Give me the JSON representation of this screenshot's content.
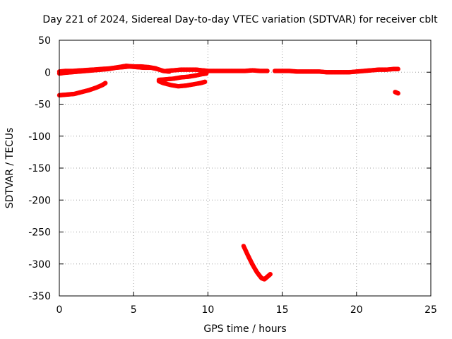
{
  "chart_data": {
    "type": "scatter",
    "title": "Day 221 of 2024, Sidereal Day-to-day VTEC variation (SDTVAR) for receiver cblt",
    "xlabel": "GPS time / hours",
    "ylabel": "SDTVAR / TECUs",
    "xlim": [
      0,
      25
    ],
    "ylim": [
      -350,
      50
    ],
    "xticks": [
      0,
      5,
      10,
      15,
      20,
      25
    ],
    "yticks": [
      50,
      0,
      -50,
      -100,
      -150,
      -200,
      -250,
      -300,
      -350
    ],
    "grid": true,
    "legend": "none",
    "marker_color": "#ff0000",
    "series": [
      {
        "segments": [
          [
            [
              0.0,
              -2
            ],
            [
              0.3,
              -1
            ],
            [
              0.8,
              0
            ],
            [
              1.3,
              1
            ],
            [
              1.8,
              2
            ],
            [
              2.3,
              3
            ],
            [
              2.8,
              4
            ],
            [
              3.3,
              5
            ],
            [
              3.8,
              7
            ],
            [
              4.3,
              8
            ],
            [
              4.7,
              9
            ],
            [
              5.2,
              8
            ],
            [
              5.7,
              7
            ],
            [
              6.2,
              7
            ],
            [
              6.6,
              5
            ],
            [
              7.0,
              2
            ],
            [
              7.4,
              1
            ]
          ],
          [
            [
              0.0,
              1
            ],
            [
              0.4,
              2
            ],
            [
              0.9,
              2
            ],
            [
              1.5,
              3
            ],
            [
              2.2,
              4
            ],
            [
              2.8,
              5
            ],
            [
              3.4,
              6
            ],
            [
              4.0,
              8
            ],
            [
              4.5,
              10
            ],
            [
              5.0,
              9
            ],
            [
              5.5,
              9
            ],
            [
              6.0,
              8
            ],
            [
              6.5,
              6
            ]
          ],
          [
            [
              0.0,
              -36
            ],
            [
              0.5,
              -35
            ],
            [
              1.0,
              -34
            ],
            [
              1.5,
              -31
            ],
            [
              2.0,
              -28
            ],
            [
              2.5,
              -24
            ],
            [
              2.9,
              -20
            ],
            [
              3.1,
              -17
            ]
          ],
          [
            [
              6.7,
              -14
            ],
            [
              7.0,
              -17
            ],
            [
              7.5,
              -20
            ],
            [
              8.0,
              -22
            ],
            [
              8.5,
              -21
            ],
            [
              9.0,
              -19
            ],
            [
              9.5,
              -17
            ],
            [
              9.8,
              -15
            ]
          ],
          [
            [
              6.7,
              -12
            ],
            [
              7.2,
              -11
            ],
            [
              7.7,
              -10
            ],
            [
              8.2,
              -8
            ],
            [
              8.7,
              -7
            ],
            [
              9.2,
              -5
            ],
            [
              9.6,
              -3
            ],
            [
              9.9,
              -2
            ]
          ],
          [
            [
              7.2,
              2
            ],
            [
              7.7,
              3
            ],
            [
              8.2,
              4
            ],
            [
              8.7,
              4
            ],
            [
              9.2,
              4
            ],
            [
              9.6,
              3
            ],
            [
              10.0,
              2
            ],
            [
              10.5,
              2
            ],
            [
              11.0,
              2
            ],
            [
              11.5,
              2
            ],
            [
              12.0,
              2
            ],
            [
              12.5,
              2
            ],
            [
              13.0,
              3
            ],
            [
              13.5,
              2
            ],
            [
              14.0,
              2
            ]
          ],
          [
            [
              14.5,
              2
            ],
            [
              15.0,
              2
            ],
            [
              15.5,
              2
            ],
            [
              16.0,
              1
            ],
            [
              16.5,
              1
            ],
            [
              17.0,
              1
            ],
            [
              17.5,
              1
            ],
            [
              18.0,
              0
            ],
            [
              18.5,
              0
            ],
            [
              19.0,
              0
            ],
            [
              19.5,
              0
            ],
            [
              20.0,
              1
            ],
            [
              20.5,
              2
            ],
            [
              21.0,
              3
            ],
            [
              21.5,
              4
            ],
            [
              22.0,
              4
            ],
            [
              22.5,
              5
            ],
            [
              22.8,
              5
            ]
          ],
          [
            [
              12.4,
              -272
            ],
            [
              12.7,
              -287
            ],
            [
              13.0,
              -301
            ],
            [
              13.3,
              -313
            ],
            [
              13.6,
              -322
            ],
            [
              13.8,
              -324
            ],
            [
              14.0,
              -320
            ],
            [
              14.2,
              -316
            ]
          ],
          [
            [
              22.6,
              -31
            ],
            [
              22.8,
              -33
            ]
          ]
        ]
      }
    ]
  }
}
